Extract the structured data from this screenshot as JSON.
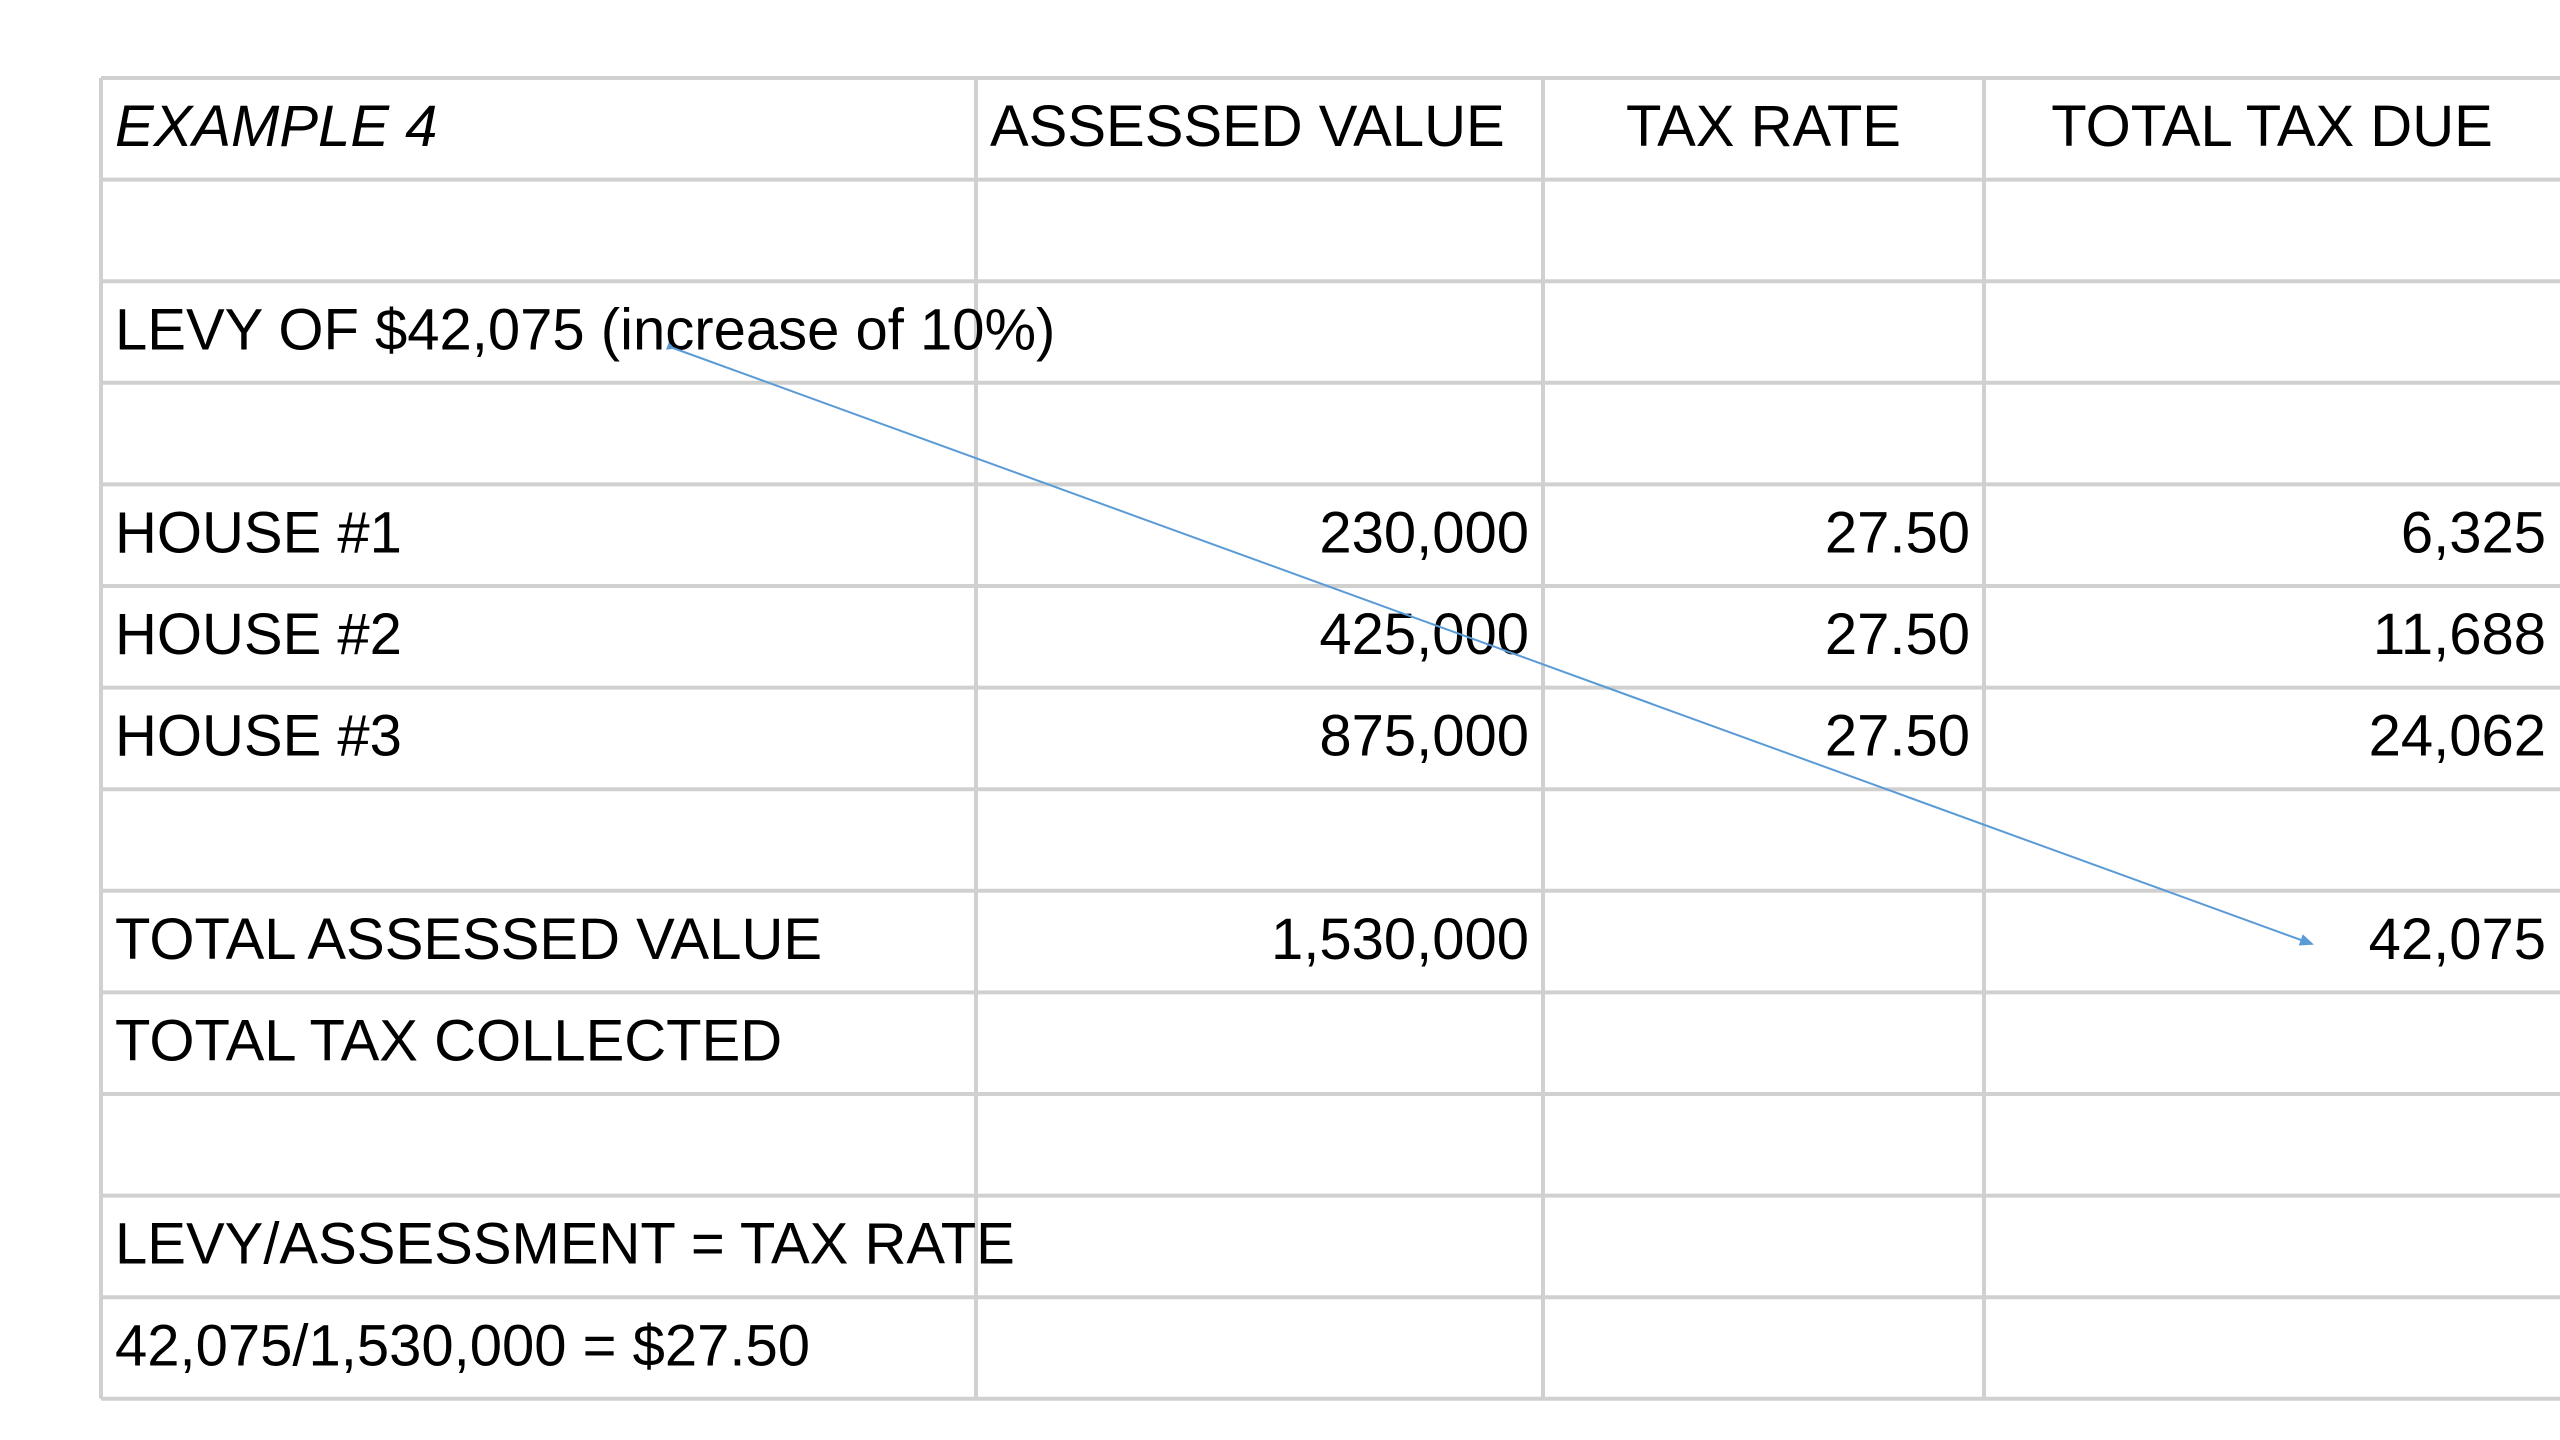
{
  "table": {
    "rows": [
      [
        "EXAMPLE 4",
        "ASSESSED VALUE",
        "TAX RATE",
        "TOTAL TAX DUE"
      ],
      [
        null,
        null,
        null,
        null
      ],
      [
        "LEVY OF $42,075 (increase of 10%)",
        null,
        null,
        null
      ],
      [
        null,
        null,
        null,
        null
      ],
      [
        "HOUSE #1",
        "230,000",
        "27.50",
        "6,325"
      ],
      [
        "HOUSE #2",
        "425,000",
        "27.50",
        "11,688"
      ],
      [
        "HOUSE #3",
        "875,000",
        "27.50",
        "24,062"
      ],
      [
        null,
        null,
        null,
        null
      ],
      [
        "TOTAL ASSESSED VALUE",
        "1,530,000",
        null,
        "42,075"
      ],
      [
        "TOTAL TAX COLLECTED",
        null,
        null,
        null
      ],
      [
        null,
        null,
        null,
        null
      ],
      [
        "LEVY/ASSESSMENT = TAX RATE",
        null,
        null,
        null
      ],
      [
        "42,075/1,530,000 = $27.50",
        null,
        null,
        null
      ]
    ]
  }
}
